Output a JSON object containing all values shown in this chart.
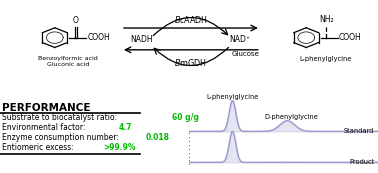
{
  "left_compound": "Benzoylformic acid\nGluconic acid",
  "right_compound": "L-phenylglycine",
  "cofactor_left": "NADH",
  "cofactor_right": "NAD⁺",
  "cofactor_bottom": "Glucose",
  "performance_title": "PERFORMANCE",
  "perf_lines": [
    {
      "black": "Substrate to biocatalyst ratio: ",
      "green": "60 g/g"
    },
    {
      "black": "Environmental factor: ",
      "green": "4.7"
    },
    {
      "black": "Enzyme consumption number: ",
      "green": "0.018"
    },
    {
      "black": "Entiomeric excess: ",
      "green": ">99.9%"
    }
  ],
  "chromatogram_label_L": "L-phenylglycine",
  "chromatogram_label_D": "D-phenylglycine",
  "chromatogram_label_standard": "Standard",
  "chromatogram_label_product": "Product",
  "line_color": "#9999cc",
  "background_color": "#ffffff",
  "green_color": "#00bb00",
  "text_color": "#000000"
}
